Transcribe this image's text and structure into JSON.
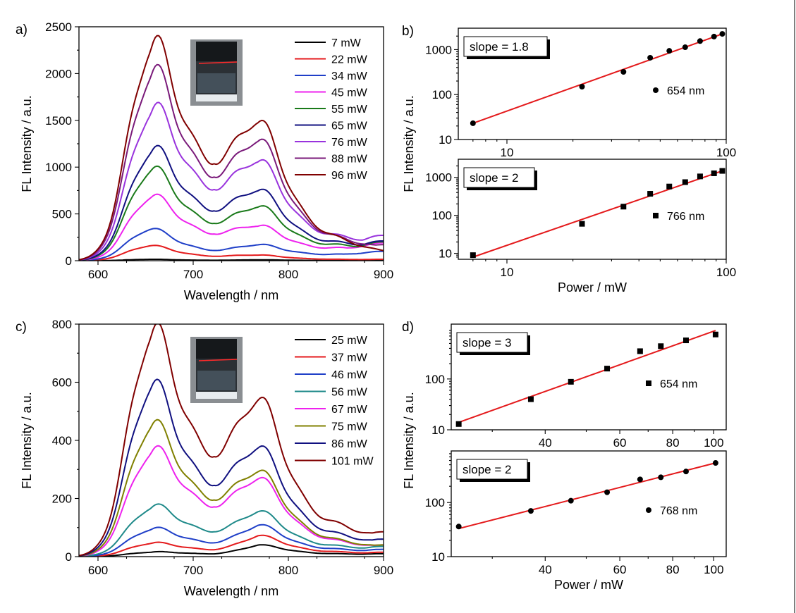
{
  "chart_data": [
    {
      "id": "a",
      "panel_label": "a)",
      "type": "line",
      "xlabel": "Wavelength / nm",
      "ylabel": "FL Intensity / a.u.",
      "xlim": [
        580,
        900
      ],
      "ylim": [
        0,
        2500
      ],
      "xticks": [
        600,
        700,
        800,
        900
      ],
      "yticks": [
        0,
        500,
        1000,
        1500,
        2000,
        2500
      ],
      "legend_position": "top-right",
      "inset": "cuvette photo",
      "series": [
        {
          "name": "7 mW",
          "color": "#000000",
          "peak1": 15,
          "valley": 5,
          "peak2": 10,
          "tail": 2
        },
        {
          "name": "22 mW",
          "color": "#e41a1c",
          "peak1": 160,
          "valley": 50,
          "peak2": 60,
          "tail": 15
        },
        {
          "name": "34 mW",
          "color": "#1f3fc8",
          "peak1": 335,
          "valley": 115,
          "peak2": 170,
          "tail": 100
        },
        {
          "name": "45 mW",
          "color": "#ee22ee",
          "peak1": 670,
          "valley": 300,
          "peak2": 370,
          "tail": 190
        },
        {
          "name": "55 mW",
          "color": "#1a7a1a",
          "peak1": 955,
          "valley": 420,
          "peak2": 575,
          "tail": 200
        },
        {
          "name": "65 mW",
          "color": "#101080",
          "peak1": 1145,
          "valley": 560,
          "peak2": 750,
          "tail": 210
        },
        {
          "name": "76 mW",
          "color": "#9933dd",
          "peak1": 1560,
          "valley": 800,
          "peak2": 1060,
          "tail": 270
        },
        {
          "name": "88 mW",
          "color": "#7a1a7a",
          "peak1": 1955,
          "valley": 940,
          "peak2": 1280,
          "tail": 170
        },
        {
          "name": "96 mW",
          "color": "#800000",
          "peak1": 2240,
          "valley": 1090,
          "peak2": 1480,
          "tail": 100
        }
      ]
    },
    {
      "id": "b_top",
      "panel_label": "b)",
      "type": "scatter",
      "scale": "log-log",
      "xlim": [
        6,
        100
      ],
      "ylim": [
        10,
        3000
      ],
      "xticks": [
        10,
        100
      ],
      "yticks": [
        10,
        100,
        1000
      ],
      "slope_label": "slope = 1.8",
      "legend": "654 nm",
      "marker": "circle",
      "x": [
        7,
        22,
        34,
        45,
        55,
        65,
        76,
        88,
        96
      ],
      "y": [
        23,
        150,
        320,
        660,
        940,
        1130,
        1550,
        1950,
        2240
      ],
      "fit": {
        "slope": 1.8,
        "from": [
          7,
          23
        ],
        "to": [
          96,
          2240
        ]
      }
    },
    {
      "id": "b_bottom",
      "type": "scatter",
      "scale": "log-log",
      "xlabel": "Power / mW",
      "xlim": [
        6,
        100
      ],
      "ylim": [
        7,
        3000
      ],
      "xticks": [
        10,
        100
      ],
      "yticks": [
        10,
        100,
        1000
      ],
      "slope_label": "slope = 2",
      "legend": "766 nm",
      "marker": "square",
      "x": [
        7,
        22,
        34,
        45,
        55,
        65,
        76,
        88,
        96
      ],
      "y": [
        9,
        60,
        170,
        370,
        575,
        750,
        1060,
        1280,
        1480
      ],
      "fit": {
        "slope": 2,
        "from": [
          7,
          8
        ],
        "to": [
          96,
          1480
        ]
      }
    },
    {
      "id": "c",
      "panel_label": "c)",
      "type": "line",
      "xlabel": "Wavelength / nm",
      "ylabel": "FL Intensity / a.u.",
      "xlim": [
        580,
        900
      ],
      "ylim": [
        0,
        800
      ],
      "xticks": [
        600,
        700,
        800,
        900
      ],
      "yticks": [
        0,
        200,
        400,
        600,
        800
      ],
      "legend_position": "top-right",
      "inset": "cuvette photo",
      "series": [
        {
          "name": "25 mW",
          "color": "#000000",
          "peak1": 15,
          "valley": 10,
          "peak2": 40,
          "tail": 10
        },
        {
          "name": "37 mW",
          "color": "#e41a1c",
          "peak1": 45,
          "valley": 25,
          "peak2": 72,
          "tail": 15
        },
        {
          "name": "46 mW",
          "color": "#1f3fc8",
          "peak1": 92,
          "valley": 50,
          "peak2": 108,
          "tail": 25
        },
        {
          "name": "56 mW",
          "color": "#1f8a8a",
          "peak1": 165,
          "valley": 90,
          "peak2": 155,
          "tail": 35
        },
        {
          "name": "67 mW",
          "color": "#ee22ee",
          "peak1": 352,
          "valley": 180,
          "peak2": 268,
          "tail": 40
        },
        {
          "name": "75 mW",
          "color": "#808000",
          "peak1": 442,
          "valley": 205,
          "peak2": 293,
          "tail": 40
        },
        {
          "name": "86 mW",
          "color": "#101080",
          "peak1": 575,
          "valley": 258,
          "peak2": 375,
          "tail": 60
        },
        {
          "name": "101 mW",
          "color": "#800000",
          "peak1": 750,
          "valley": 362,
          "peak2": 540,
          "tail": 85
        }
      ]
    },
    {
      "id": "d_top",
      "panel_label": "d)",
      "type": "scatter",
      "scale": "log-log",
      "xlim": [
        24,
        107
      ],
      "ylim": [
        10,
        1200
      ],
      "xticks": [
        40,
        60,
        80,
        100
      ],
      "yticks": [
        10,
        100
      ],
      "slope_label": "slope = 3",
      "legend": "654 nm",
      "marker": "square",
      "x": [
        25,
        37,
        46,
        56,
        67,
        75,
        86,
        101
      ],
      "y": [
        13,
        40,
        88,
        160,
        352,
        442,
        575,
        750
      ],
      "fit": {
        "slope": 3,
        "from": [
          25,
          14
        ],
        "to": [
          101,
          900
        ]
      }
    },
    {
      "id": "d_bottom",
      "type": "scatter",
      "scale": "log-log",
      "xlabel": "Power / mW",
      "xlim": [
        24,
        107
      ],
      "ylim": [
        10,
        900
      ],
      "xticks": [
        40,
        60,
        80,
        100
      ],
      "yticks": [
        10,
        100
      ],
      "slope_label": "slope = 2",
      "legend": "768 nm",
      "marker": "circle",
      "x": [
        25,
        37,
        46,
        56,
        67,
        75,
        86,
        101
      ],
      "y": [
        36,
        70,
        108,
        155,
        268,
        293,
        375,
        540
      ],
      "fit": {
        "slope": 2,
        "from": [
          25,
          33
        ],
        "to": [
          101,
          540
        ]
      }
    }
  ],
  "shared_ylabel": "FL Intensity / a.u."
}
